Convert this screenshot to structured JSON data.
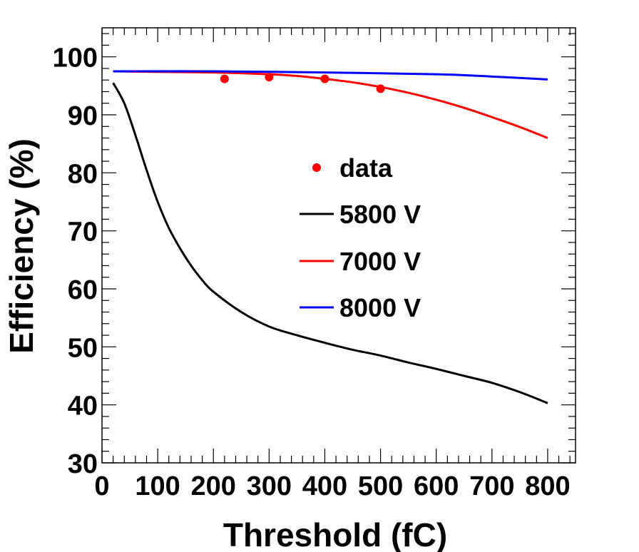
{
  "chart_data": {
    "type": "line",
    "title": "",
    "xlabel": "Threshold (fC)",
    "ylabel": "Efficiency (%)",
    "xlim": [
      0,
      850
    ],
    "ylim": [
      30,
      105
    ],
    "xticks": [
      0,
      100,
      200,
      300,
      400,
      500,
      600,
      700,
      800
    ],
    "yticks": [
      30,
      40,
      50,
      60,
      70,
      80,
      90,
      100
    ],
    "legend_position": "center-right",
    "colors": {
      "data": "#ff0000",
      "5800 V": "#000000",
      "7000 V": "#ff0000",
      "8000 V": "#0000ff"
    },
    "points": {
      "name": "data",
      "x": [
        220,
        300,
        400,
        500
      ],
      "y": [
        96.2,
        96.5,
        96.2,
        94.5
      ]
    },
    "series": [
      {
        "name": "5800 V",
        "x": [
          20,
          40,
          60,
          80,
          100,
          120,
          140,
          160,
          180,
          200,
          250,
          300,
          350,
          400,
          450,
          500,
          550,
          600,
          650,
          700,
          750,
          800
        ],
        "y": [
          95.5,
          92,
          86.5,
          80.5,
          75,
          70.5,
          67,
          64,
          61.5,
          59.5,
          56,
          53.5,
          52,
          50.7,
          49.5,
          48.5,
          47.3,
          46.2,
          45,
          43.8,
          42.2,
          40.3
        ]
      },
      {
        "name": "7000 V",
        "x": [
          20,
          100,
          200,
          300,
          350,
          400,
          450,
          500,
          550,
          600,
          650,
          700,
          750,
          800
        ],
        "y": [
          97.5,
          97.4,
          97.3,
          97.0,
          96.7,
          96.2,
          95.6,
          94.8,
          93.8,
          92.6,
          91.2,
          89.6,
          87.9,
          86.0
        ]
      },
      {
        "name": "8000 V",
        "x": [
          20,
          200,
          400,
          600,
          700,
          800
        ],
        "y": [
          97.5,
          97.5,
          97.3,
          97.0,
          96.6,
          96.1
        ]
      }
    ]
  }
}
